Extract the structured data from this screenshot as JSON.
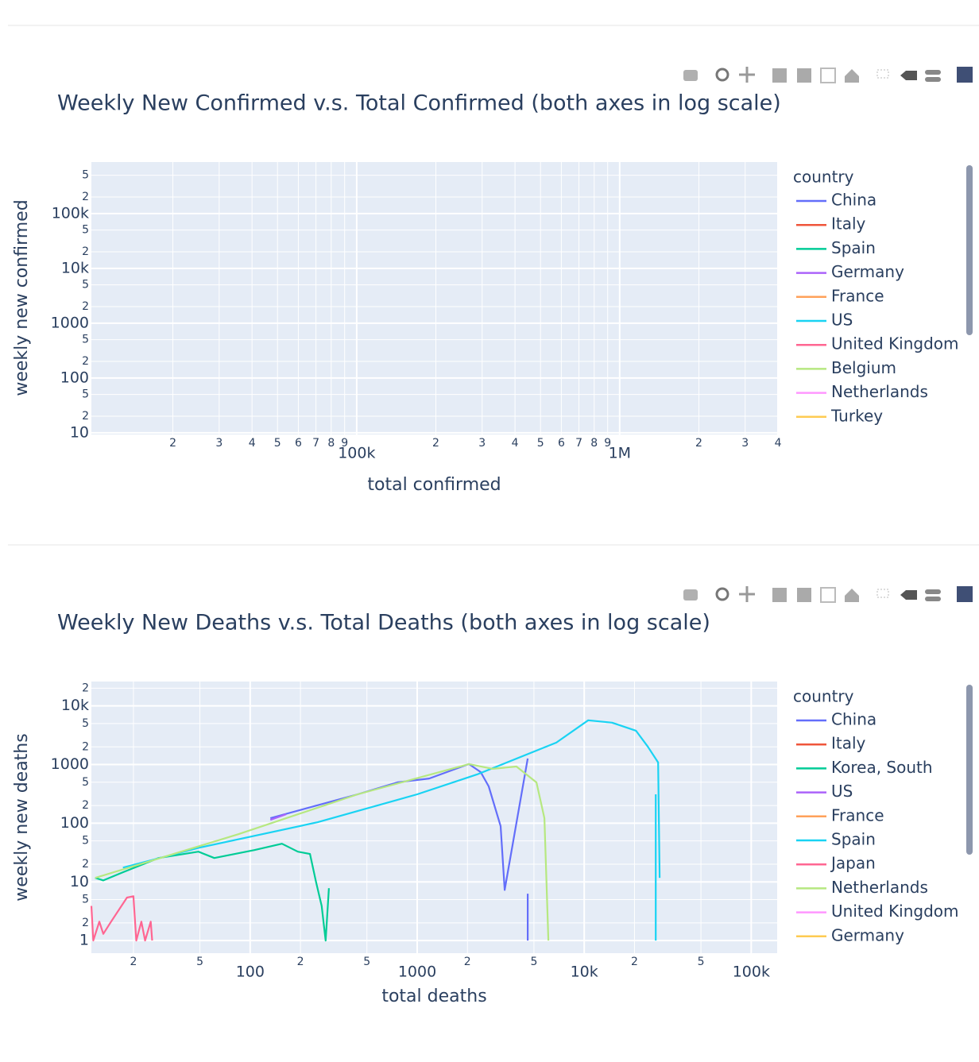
{
  "chart_data": [
    {
      "type": "line",
      "title": "Weekly New Confirmed v.s. Total Confirmed (both axes in log scale)",
      "x_label": "total confirmed",
      "y_label": "weekly new confirmed",
      "legend_title": "country",
      "legend": "right",
      "grid": true,
      "xlog": true,
      "ylog": true,
      "xlim": [
        9800,
        3970000
      ],
      "ylim": [
        9.3,
        870000
      ],
      "xticks": [
        {
          "value": 20000,
          "label": "2"
        },
        {
          "value": 30000,
          "label": "3"
        },
        {
          "value": 40000,
          "label": "4"
        },
        {
          "value": 50000,
          "label": "5"
        },
        {
          "value": 60000,
          "label": "6"
        },
        {
          "value": 70000,
          "label": "7"
        },
        {
          "value": 80000,
          "label": "8"
        },
        {
          "value": 90000,
          "label": "9"
        },
        {
          "value": 100000,
          "label": "100k"
        },
        {
          "value": 200000,
          "label": "2"
        },
        {
          "value": 300000,
          "label": "3"
        },
        {
          "value": 400000,
          "label": "4"
        },
        {
          "value": 500000,
          "label": "5"
        },
        {
          "value": 600000,
          "label": "6"
        },
        {
          "value": 700000,
          "label": "7"
        },
        {
          "value": 800000,
          "label": "8"
        },
        {
          "value": 900000,
          "label": "9"
        },
        {
          "value": 1000000,
          "label": "1M"
        },
        {
          "value": 2000000,
          "label": "2"
        },
        {
          "value": 3000000,
          "label": "3"
        },
        {
          "value": 4000000,
          "label": "4"
        }
      ],
      "yticks": [
        10,
        {
          "value": 20,
          "label": "2"
        },
        {
          "value": 50,
          "label": "5"
        },
        100,
        {
          "value": 200,
          "label": "2"
        },
        {
          "value": 500,
          "label": "5"
        },
        1000,
        {
          "value": 2000,
          "label": "2"
        },
        {
          "value": 5000,
          "label": "5"
        },
        {
          "value": 10000,
          "label": "10k"
        },
        {
          "value": 20000,
          "label": "2"
        },
        {
          "value": 50000,
          "label": "5"
        },
        {
          "value": 100000,
          "label": "100k"
        },
        {
          "value": 200000,
          "label": "2"
        },
        {
          "value": 500000,
          "label": "5"
        }
      ],
      "series": [
        {
          "name": "China",
          "color": "#636efa",
          "x": [],
          "values": []
        },
        {
          "name": "Italy",
          "color": "#EF553B",
          "x": [],
          "values": []
        },
        {
          "name": "Spain",
          "color": "#00cc96",
          "x": [],
          "values": []
        },
        {
          "name": "Germany",
          "color": "#ab63fa",
          "x": [],
          "values": []
        },
        {
          "name": "France",
          "color": "#FFA15A",
          "x": [],
          "values": []
        },
        {
          "name": "US",
          "color": "#19d3f3",
          "x": [],
          "values": []
        },
        {
          "name": "United Kingdom",
          "color": "#FF6692",
          "x": [],
          "values": []
        },
        {
          "name": "Belgium",
          "color": "#B6E880",
          "x": [],
          "values": []
        },
        {
          "name": "Netherlands",
          "color": "#FF97FF",
          "x": [],
          "values": []
        },
        {
          "name": "Turkey",
          "color": "#FECB52",
          "x": [],
          "values": []
        }
      ]
    },
    {
      "type": "line",
      "title": "Weekly New Deaths v.s. Total Deaths (both axes in log scale)",
      "x_label": "total deaths",
      "y_label": "weekly new deaths",
      "legend_title": "country",
      "legend": "right",
      "grid": true,
      "xlog": true,
      "ylog": true,
      "xlim": [
        11.2,
        143000
      ],
      "ylim": [
        0.61,
        26000
      ],
      "xticks": [
        {
          "value": 20,
          "label": "2"
        },
        {
          "value": 50,
          "label": "5"
        },
        100,
        {
          "value": 200,
          "label": "2"
        },
        {
          "value": 500,
          "label": "5"
        },
        1000,
        {
          "value": 2000,
          "label": "2"
        },
        {
          "value": 5000,
          "label": "5"
        },
        {
          "value": 10000,
          "label": "10k"
        },
        {
          "value": 20000,
          "label": "2"
        },
        {
          "value": 50000,
          "label": "5"
        },
        {
          "value": 100000,
          "label": "100k"
        }
      ],
      "yticks": [
        1,
        {
          "value": 2,
          "label": "2"
        },
        {
          "value": 5,
          "label": "5"
        },
        10,
        {
          "value": 20,
          "label": "2"
        },
        {
          "value": 50,
          "label": "5"
        },
        100,
        {
          "value": 200,
          "label": "2"
        },
        {
          "value": 500,
          "label": "5"
        },
        1000,
        {
          "value": 2000,
          "label": "2"
        },
        {
          "value": 5000,
          "label": "5"
        },
        {
          "value": 10000,
          "label": "10k"
        },
        {
          "value": 20000,
          "label": "2"
        }
      ],
      "series": [
        {
          "name": "China",
          "color": "#636efa",
          "x": [
            132,
            440,
            760,
            1180,
            2040,
            2400,
            2680,
            3160,
            3340,
            4590,
            null,
            4590,
            4590
          ],
          "values": [
            122,
            311,
            497,
            578,
            1020,
            745,
            425,
            89,
            7.3,
            1270,
            null,
            6.3,
            1.0
          ]
        },
        {
          "name": "Italy",
          "color": "#EF553B",
          "x": [],
          "values": []
        },
        {
          "name": "Korea, South",
          "color": "#00cc96",
          "x": [
            11.8,
            13.2,
            17.3,
            28.3,
            49,
            61,
            106,
            155,
            193,
            228,
            248,
            268,
            283,
            296
          ],
          "values": [
            11.7,
            10.6,
            14.6,
            25.5,
            32.8,
            25.5,
            34.9,
            44.8,
            32.8,
            29.9,
            10,
            3.9,
            1.0,
            7.8
          ]
        },
        {
          "name": "US",
          "color": "#ab63fa",
          "x": [
            132,
            164
          ],
          "values": [
            114,
            142
          ]
        },
        {
          "name": "France",
          "color": "#FFA15A",
          "x": [],
          "values": []
        },
        {
          "name": "Spain",
          "color": "#19d3f3",
          "x": [
            17.3,
            49,
            254,
            1000,
            2275,
            6810,
            10560,
            14700,
            20400,
            24000,
            27700,
            28300,
            null,
            26800,
            26800
          ],
          "values": [
            17.5,
            38,
            104,
            311,
            676,
            2366,
            5680,
            5170,
            3780,
            2030,
            1085,
            11.7,
            null,
            311,
            1.0
          ]
        },
        {
          "name": "Japan",
          "color": "#FF6692",
          "x": [
            11.2,
            11.5,
            12.5,
            13.2,
            14.7,
            18.3,
            20,
            20.8,
            22.3,
            23.5,
            25.4,
            25.9
          ],
          "values": [
            3.9,
            1.0,
            2.1,
            1.3,
            2.1,
            5.4,
            5.7,
            1.0,
            2.1,
            1.0,
            2.1,
            1.0
          ]
        },
        {
          "name": "Netherlands",
          "color": "#B6E880",
          "x": [
            11.8,
            85,
            440,
            2040,
            2830,
            3930,
            5180,
            5780,
            6100
          ],
          "values": [
            11.7,
            65,
            311,
            1020,
            845,
            926,
            497,
            122,
            1.0
          ]
        },
        {
          "name": "United Kingdom",
          "color": "#FF97FF",
          "x": [],
          "values": []
        },
        {
          "name": "Germany",
          "color": "#FECB52",
          "x": [],
          "values": []
        }
      ]
    }
  ]
}
